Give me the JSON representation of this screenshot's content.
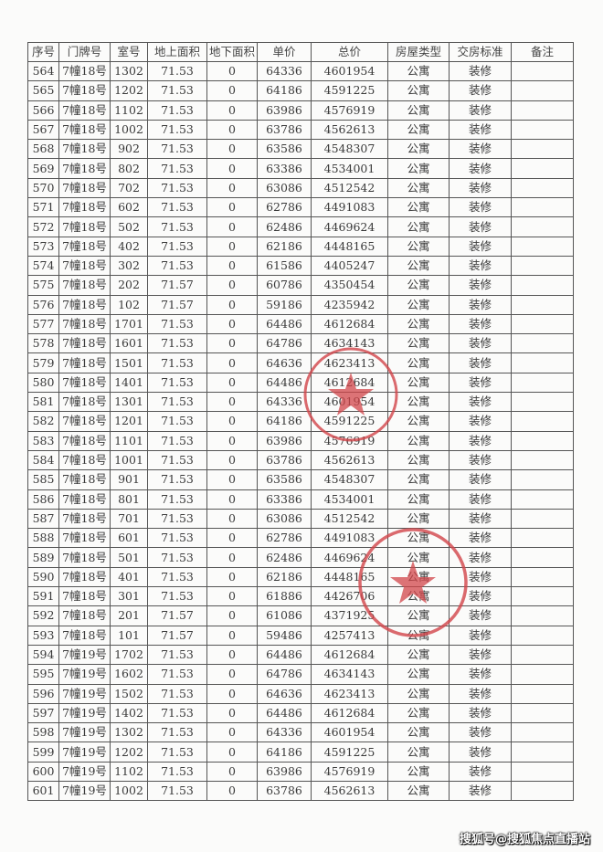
{
  "table": {
    "headers": [
      "序号",
      "门牌号",
      "室号",
      "地上面积",
      "地下面积",
      "单价",
      "总价",
      "房屋类型",
      "交房标准",
      "备注"
    ],
    "rows": [
      [
        "564",
        "7幢18号",
        "1302",
        "71.53",
        "0",
        "64336",
        "4601954",
        "公寓",
        "装修",
        ""
      ],
      [
        "565",
        "7幢18号",
        "1202",
        "71.53",
        "0",
        "64186",
        "4591225",
        "公寓",
        "装修",
        ""
      ],
      [
        "566",
        "7幢18号",
        "1102",
        "71.53",
        "0",
        "63986",
        "4576919",
        "公寓",
        "装修",
        ""
      ],
      [
        "567",
        "7幢18号",
        "1002",
        "71.53",
        "0",
        "63786",
        "4562613",
        "公寓",
        "装修",
        ""
      ],
      [
        "568",
        "7幢18号",
        "902",
        "71.53",
        "0",
        "63586",
        "4548307",
        "公寓",
        "装修",
        ""
      ],
      [
        "569",
        "7幢18号",
        "802",
        "71.53",
        "0",
        "63386",
        "4534001",
        "公寓",
        "装修",
        ""
      ],
      [
        "570",
        "7幢18号",
        "702",
        "71.53",
        "0",
        "63086",
        "4512542",
        "公寓",
        "装修",
        ""
      ],
      [
        "571",
        "7幢18号",
        "602",
        "71.53",
        "0",
        "62786",
        "4491083",
        "公寓",
        "装修",
        ""
      ],
      [
        "572",
        "7幢18号",
        "502",
        "71.53",
        "0",
        "62486",
        "4469624",
        "公寓",
        "装修",
        ""
      ],
      [
        "573",
        "7幢18号",
        "402",
        "71.53",
        "0",
        "62186",
        "4448165",
        "公寓",
        "装修",
        ""
      ],
      [
        "574",
        "7幢18号",
        "302",
        "71.53",
        "0",
        "61586",
        "4405247",
        "公寓",
        "装修",
        ""
      ],
      [
        "575",
        "7幢18号",
        "202",
        "71.57",
        "0",
        "60786",
        "4350454",
        "公寓",
        "装修",
        ""
      ],
      [
        "576",
        "7幢18号",
        "102",
        "71.57",
        "0",
        "59186",
        "4235942",
        "公寓",
        "装修",
        ""
      ],
      [
        "577",
        "7幢18号",
        "1701",
        "71.53",
        "0",
        "64486",
        "4612684",
        "公寓",
        "装修",
        ""
      ],
      [
        "578",
        "7幢18号",
        "1601",
        "71.53",
        "0",
        "64786",
        "4634143",
        "公寓",
        "装修",
        ""
      ],
      [
        "579",
        "7幢18号",
        "1501",
        "71.53",
        "0",
        "64636",
        "4623413",
        "公寓",
        "装修",
        ""
      ],
      [
        "580",
        "7幢18号",
        "1401",
        "71.53",
        "0",
        "64486",
        "4612684",
        "公寓",
        "装修",
        ""
      ],
      [
        "581",
        "7幢18号",
        "1301",
        "71.53",
        "0",
        "64336",
        "4601954",
        "公寓",
        "装修",
        ""
      ],
      [
        "582",
        "7幢18号",
        "1201",
        "71.53",
        "0",
        "64186",
        "4591225",
        "公寓",
        "装修",
        ""
      ],
      [
        "583",
        "7幢18号",
        "1101",
        "71.53",
        "0",
        "63986",
        "4576919",
        "公寓",
        "装修",
        ""
      ],
      [
        "584",
        "7幢18号",
        "1001",
        "71.53",
        "0",
        "63786",
        "4562613",
        "公寓",
        "装修",
        ""
      ],
      [
        "585",
        "7幢18号",
        "901",
        "71.53",
        "0",
        "63586",
        "4548307",
        "公寓",
        "装修",
        ""
      ],
      [
        "586",
        "7幢18号",
        "801",
        "71.53",
        "0",
        "63386",
        "4534001",
        "公寓",
        "装修",
        ""
      ],
      [
        "587",
        "7幢18号",
        "701",
        "71.53",
        "0",
        "63086",
        "4512542",
        "公寓",
        "装修",
        ""
      ],
      [
        "588",
        "7幢18号",
        "601",
        "71.53",
        "0",
        "62786",
        "4491083",
        "公寓",
        "装修",
        ""
      ],
      [
        "589",
        "7幢18号",
        "501",
        "71.53",
        "0",
        "62486",
        "4469624",
        "公寓",
        "装修",
        ""
      ],
      [
        "590",
        "7幢18号",
        "401",
        "71.53",
        "0",
        "62186",
        "4448165",
        "公寓",
        "装修",
        ""
      ],
      [
        "591",
        "7幢18号",
        "301",
        "71.53",
        "0",
        "61886",
        "4426706",
        "公寓",
        "装修",
        ""
      ],
      [
        "592",
        "7幢18号",
        "201",
        "71.57",
        "0",
        "61086",
        "4371925",
        "公寓",
        "装修",
        ""
      ],
      [
        "593",
        "7幢18号",
        "101",
        "71.57",
        "0",
        "59486",
        "4257413",
        "公寓",
        "装修",
        ""
      ],
      [
        "594",
        "7幢19号",
        "1702",
        "71.53",
        "0",
        "64486",
        "4612684",
        "公寓",
        "装修",
        ""
      ],
      [
        "595",
        "7幢19号",
        "1602",
        "71.53",
        "0",
        "64786",
        "4634143",
        "公寓",
        "装修",
        ""
      ],
      [
        "596",
        "7幢19号",
        "1502",
        "71.53",
        "0",
        "64636",
        "4623413",
        "公寓",
        "装修",
        ""
      ],
      [
        "597",
        "7幢19号",
        "1402",
        "71.53",
        "0",
        "64486",
        "4612684",
        "公寓",
        "装修",
        ""
      ],
      [
        "598",
        "7幢19号",
        "1302",
        "71.53",
        "0",
        "64336",
        "4601954",
        "公寓",
        "装修",
        ""
      ],
      [
        "599",
        "7幢19号",
        "1202",
        "71.53",
        "0",
        "64186",
        "4591225",
        "公寓",
        "装修",
        ""
      ],
      [
        "600",
        "7幢19号",
        "1102",
        "71.53",
        "0",
        "63986",
        "4576919",
        "公寓",
        "装修",
        ""
      ],
      [
        "601",
        "7幢19号",
        "1002",
        "71.53",
        "0",
        "63786",
        "4562613",
        "公寓",
        "装修",
        ""
      ]
    ]
  },
  "stamp_color": "#d2454a",
  "watermark": "搜狐号@搜狐焦点直播站"
}
